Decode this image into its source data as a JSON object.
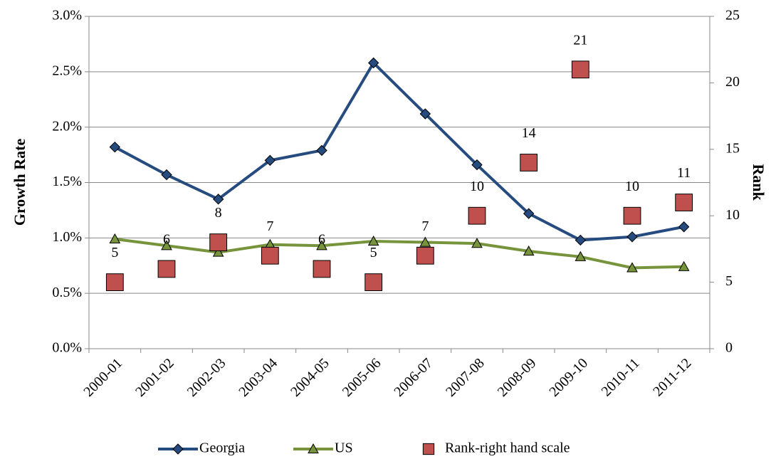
{
  "chart_data": {
    "type": "line",
    "ylabel": "Growth Rate",
    "y2label": "Rank",
    "categories": [
      "2000-01",
      "2001-02",
      "2002-03",
      "2003-04",
      "2004-05",
      "2005-06",
      "2006-07",
      "2007-08",
      "2008-09",
      "2009-10",
      "2010-11",
      "2011-12"
    ],
    "series": [
      {
        "name": "Georgia",
        "color": "#264b7f",
        "marker": "diamond",
        "line": true,
        "values": [
          1.82,
          1.57,
          1.35,
          1.7,
          1.79,
          2.58,
          2.12,
          1.66,
          1.22,
          0.98,
          1.01,
          1.1
        ]
      },
      {
        "name": "US",
        "color": "#77933c",
        "marker": "triangle",
        "line": true,
        "values": [
          0.99,
          0.93,
          0.87,
          0.94,
          0.93,
          0.97,
          0.96,
          0.95,
          0.88,
          0.83,
          0.73,
          0.74
        ]
      },
      {
        "name": "Rank-right hand scale",
        "color": "#c0504d",
        "marker": "square",
        "line": false,
        "axis": "y2",
        "data_labels": true,
        "values": [
          5,
          6,
          8,
          7,
          6,
          5,
          7,
          10,
          14,
          21,
          10,
          11
        ]
      }
    ],
    "ylim": [
      0,
      3
    ],
    "yticks": [
      {
        "value": 0,
        "label": "0.0%"
      },
      {
        "value": 0.5,
        "label": "0.5%"
      },
      {
        "value": 1,
        "label": "1.0%"
      },
      {
        "value": 1.5,
        "label": "1.5%"
      },
      {
        "value": 2,
        "label": "2.0%"
      },
      {
        "value": 2.5,
        "label": "2.5%"
      },
      {
        "value": 3,
        "label": "3.0%"
      }
    ],
    "y2lim": [
      0,
      25
    ],
    "y2ticks": [
      0,
      5,
      10,
      15,
      20,
      25
    ],
    "grid": true,
    "legend": "bottom"
  }
}
